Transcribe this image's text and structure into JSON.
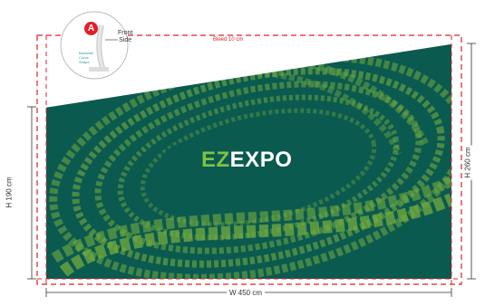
{
  "bleed_label": "Bleed 10 cm",
  "width_label": "W 450 cm",
  "height_left_label": "H 190 cm",
  "height_right_label": "H 260 cm",
  "logo": {
    "part1": "EZ",
    "part2": "EXPO"
  },
  "callout": {
    "badge": "A",
    "side_label_line1": "Front",
    "side_label_line2": "Side",
    "tiny_caption": "Backwall Curve Shape"
  },
  "colors": {
    "background": "#0b5a50",
    "bleed_line": "#e0202a",
    "logo_accent": "#7ec244",
    "logo_main": "#ffffff",
    "pattern": "#8dbf3a"
  }
}
